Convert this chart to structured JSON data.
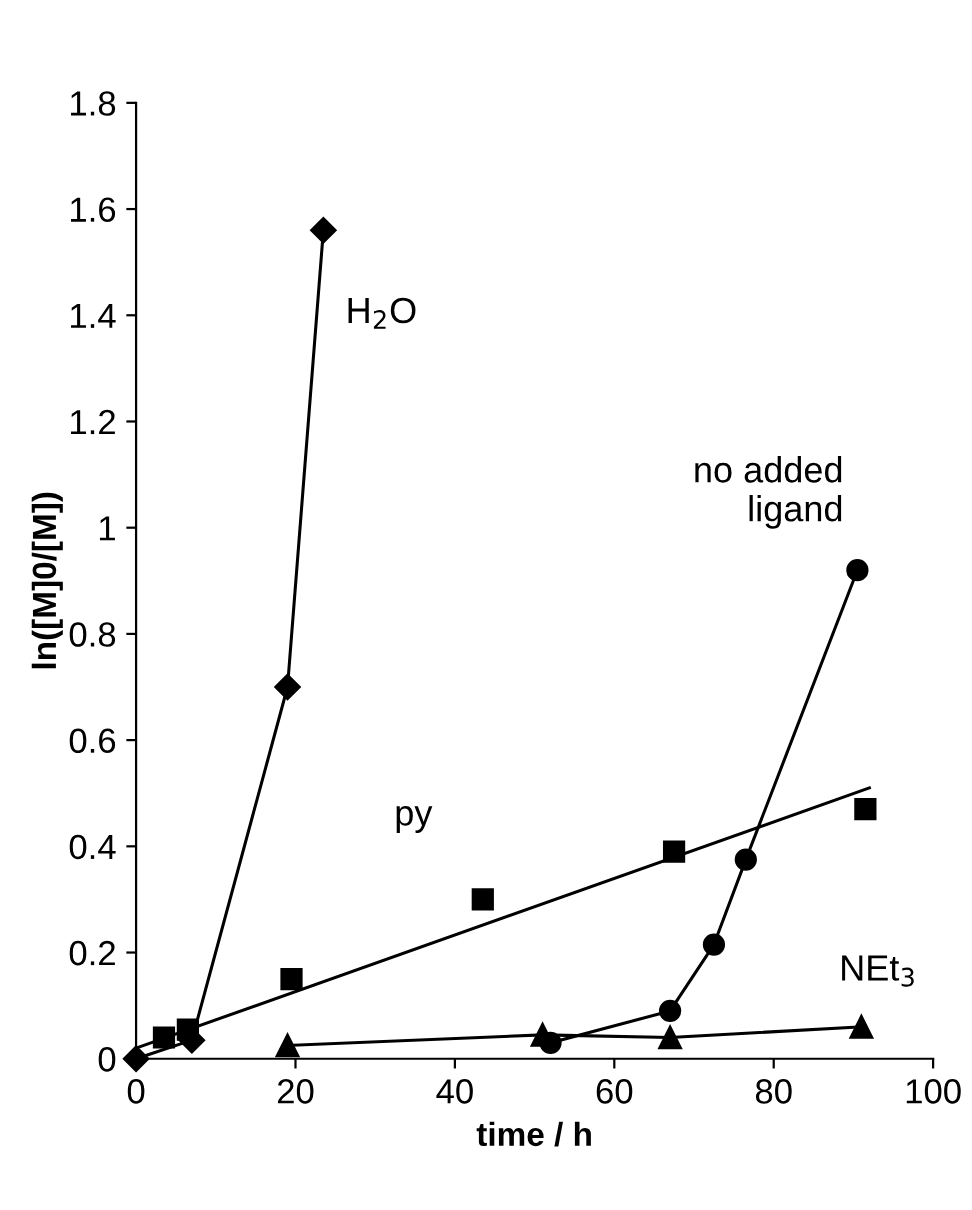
{
  "chart_data": {
    "type": "line",
    "xlabel": "time / h",
    "ylabel": "ln([M]0/[M])",
    "xlim": [
      0,
      100
    ],
    "xticks": [
      0,
      20,
      40,
      60,
      80,
      100
    ],
    "ylim": [
      0,
      1.8
    ],
    "yticks": [
      0,
      0.2,
      0.4,
      0.6,
      0.8,
      1,
      1.2,
      1.4,
      1.6,
      1.8
    ],
    "grid": false,
    "series": [
      {
        "name": "H$_{2}$O",
        "color": "#000000",
        "marker": "diamond",
        "x": [
          0,
          7,
          19,
          23.5
        ],
        "values": [
          0,
          0.035,
          0.7,
          1.56
        ]
      },
      {
        "name": "py",
        "type": "scatter",
        "color": "#000000",
        "marker": "square",
        "x": [
          3.5,
          6.5,
          19.5,
          43.5,
          67.5,
          91.5
        ],
        "values": [
          0.04,
          0.055,
          0.15,
          0.3,
          0.39,
          0.47
        ]
      },
      {
        "color": "#000000",
        "marker": "none",
        "x": [
          0,
          92
        ],
        "values": [
          0.02,
          0.51
        ]
      },
      {
        "name": "no added\nligand",
        "color": "#000000",
        "marker": "circle",
        "x": [
          52,
          67,
          72.5,
          76.5,
          90.5
        ],
        "values": [
          0.03,
          0.09,
          0.215,
          0.375,
          0.92
        ]
      },
      {
        "name": "NEt$_{3}$",
        "color": "#000000",
        "marker": "triangle",
        "x": [
          19,
          51,
          67,
          91
        ],
        "values": [
          0.025,
          0.045,
          0.04,
          0.06
        ]
      }
    ]
  }
}
